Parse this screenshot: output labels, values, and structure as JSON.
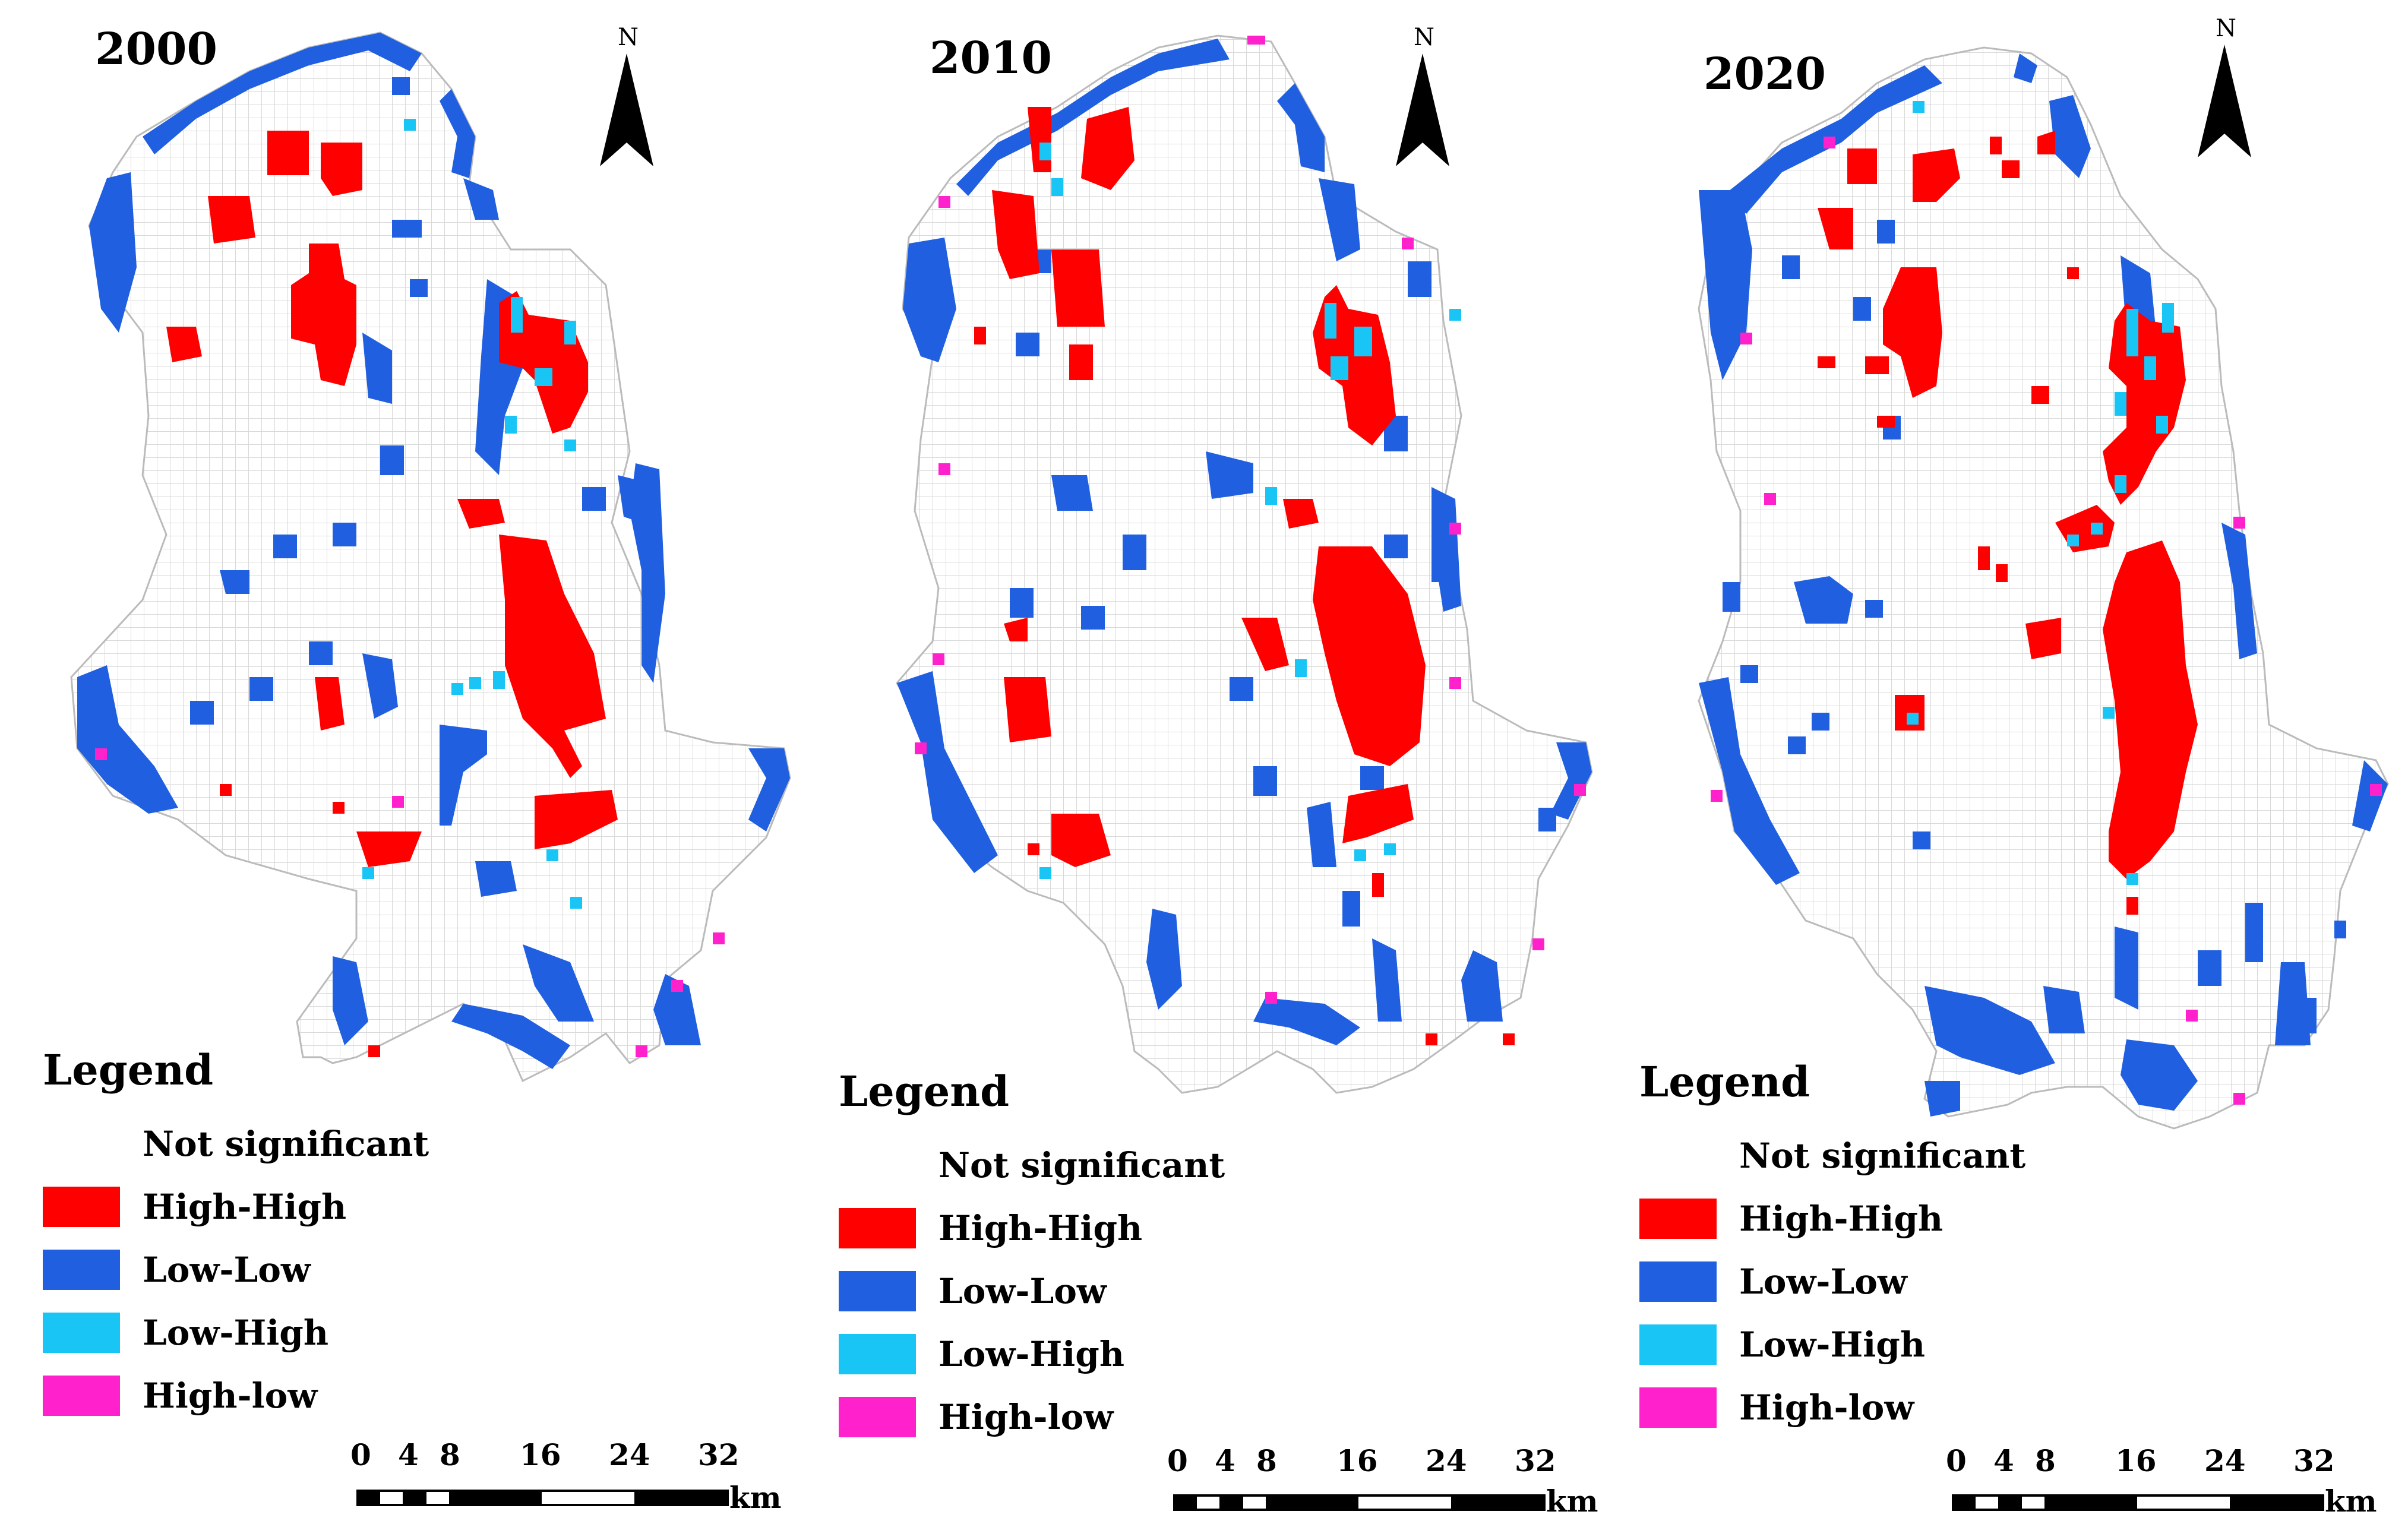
{
  "panels": [
    {
      "year": "2000",
      "legend": {
        "title": "Legend",
        "items": [
          {
            "label": "Not significant",
            "color": "#ffffff"
          },
          {
            "label": "High-High",
            "color": "#ff0000"
          },
          {
            "label": "Low-Low",
            "color": "#1f5fe0"
          },
          {
            "label": "Low-High",
            "color": "#19c5f5"
          },
          {
            "label": "High-low",
            "color": "#ff22cc"
          }
        ]
      },
      "north_label": "N",
      "scale": {
        "ticks": [
          "0",
          "4",
          "8",
          "16",
          "24",
          "32"
        ],
        "unit": "km"
      }
    },
    {
      "year": "2010",
      "legend": {
        "title": "Legend",
        "items": [
          {
            "label": "Not significant",
            "color": "#ffffff"
          },
          {
            "label": "High-High",
            "color": "#ff0000"
          },
          {
            "label": "Low-Low",
            "color": "#1f5fe0"
          },
          {
            "label": "Low-High",
            "color": "#19c5f5"
          },
          {
            "label": "High-low",
            "color": "#ff22cc"
          }
        ]
      },
      "north_label": "N",
      "scale": {
        "ticks": [
          "0",
          "4",
          "8",
          "16",
          "24",
          "32"
        ],
        "unit": "km"
      }
    },
    {
      "year": "2020",
      "legend": {
        "title": "Legend",
        "items": [
          {
            "label": "Not significant",
            "color": "#ffffff"
          },
          {
            "label": "High-High",
            "color": "#ff0000"
          },
          {
            "label": "Low-Low",
            "color": "#1f5fe0"
          },
          {
            "label": "Low-High",
            "color": "#19c5f5"
          },
          {
            "label": "High-low",
            "color": "#ff22cc"
          }
        ]
      },
      "north_label": "N",
      "scale": {
        "ticks": [
          "0",
          "4",
          "8",
          "16",
          "24",
          "32"
        ],
        "unit": "km"
      }
    }
  ]
}
